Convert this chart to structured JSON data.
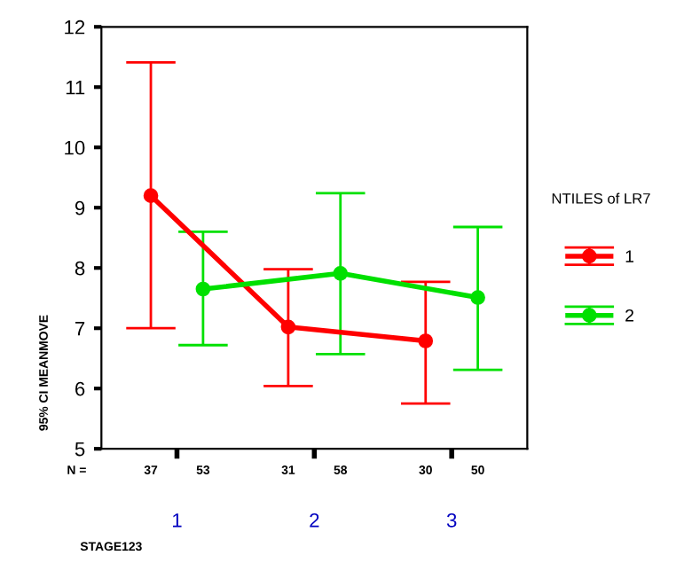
{
  "chart_data": {
    "type": "line",
    "xlabel": "STAGE123",
    "ylabel": "95% CI MEANMOVE",
    "legend_title": "NTILES of LR7",
    "categories": [
      "1",
      "2",
      "3"
    ],
    "series": [
      {
        "name": "1",
        "color": "#ff0000",
        "values": [
          9.2,
          7.02,
          6.79
        ],
        "errors": [
          [
            7.0,
            11.41
          ],
          [
            6.04,
            7.98
          ],
          [
            5.75,
            7.77
          ]
        ]
      },
      {
        "name": "2",
        "color": "#00e000",
        "values": [
          7.65,
          7.91,
          7.51
        ],
        "errors": [
          [
            6.72,
            8.6
          ],
          [
            6.57,
            9.24
          ],
          [
            6.31,
            8.68
          ]
        ]
      }
    ],
    "ylim": [
      5,
      12
    ],
    "yticks": [
      5,
      6,
      7,
      8,
      9,
      10,
      11,
      12
    ],
    "annotations": [
      "N =",
      "37",
      "53",
      "31",
      "58",
      "30",
      "50"
    ],
    "marker": "circle",
    "line_style": "solid",
    "legend": "right",
    "grid": false
  }
}
